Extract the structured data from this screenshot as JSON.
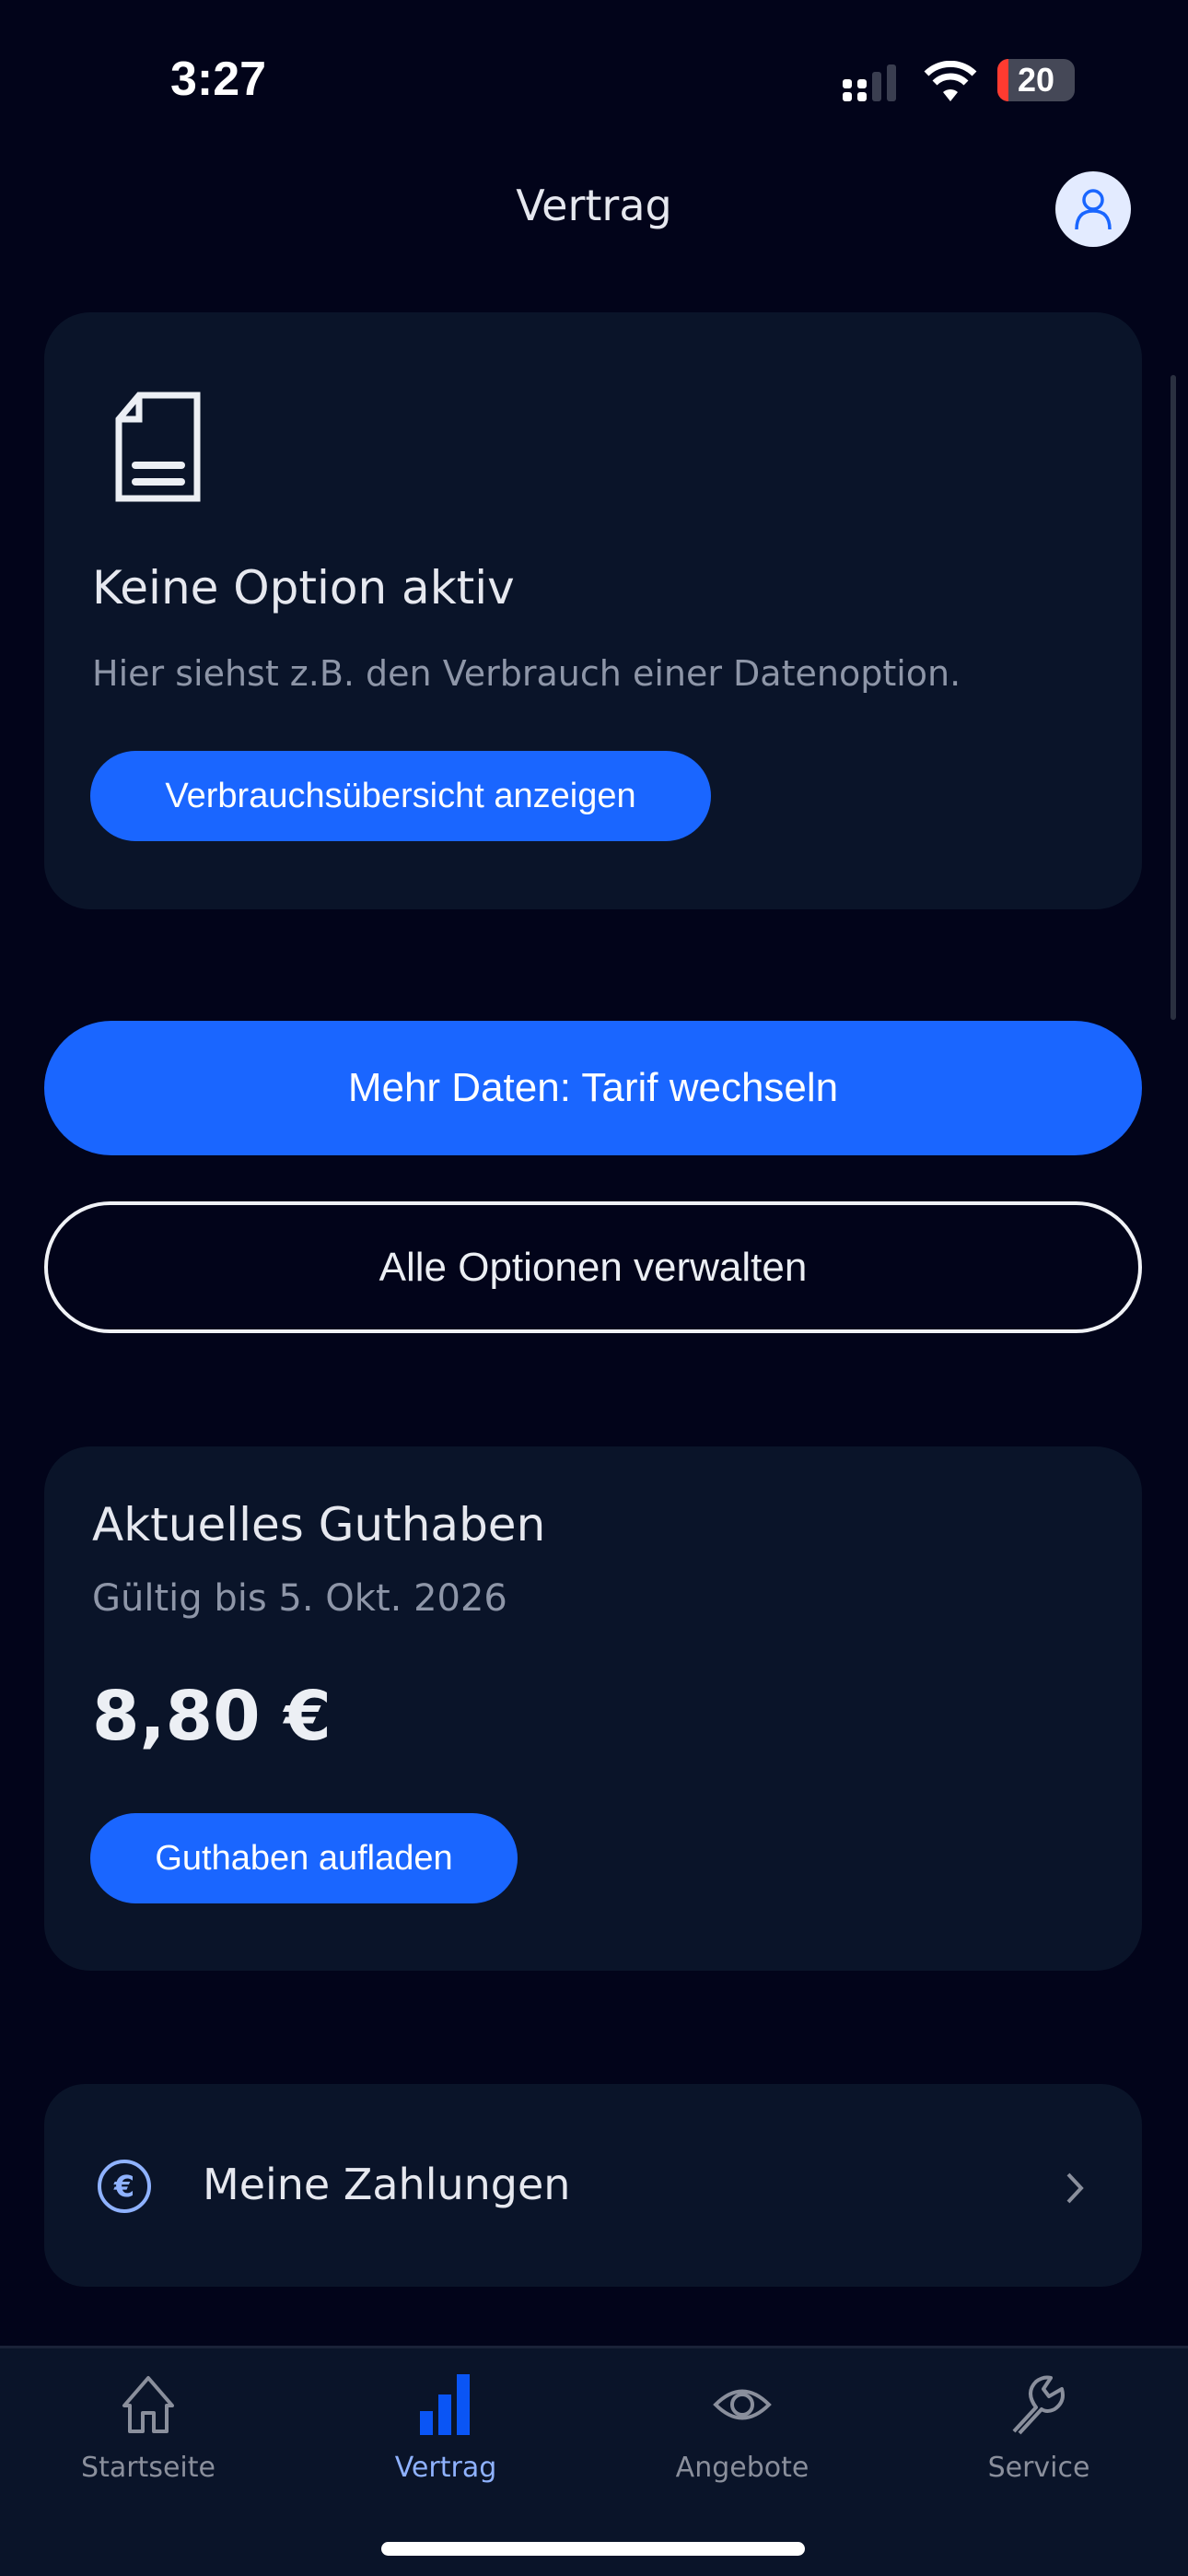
{
  "status_bar": {
    "time": "3:27",
    "battery": "20"
  },
  "header": {
    "title": "Vertrag"
  },
  "option_card": {
    "icon": "document-icon",
    "title": "Keine Option aktiv",
    "description": "Hier siehst z.B. den Verbrauch einer Datenoption.",
    "button": "Verbrauchsübersicht anzeigen"
  },
  "actions": {
    "primary": "Mehr Daten: Tarif wechseln",
    "secondary": "Alle Optionen verwalten"
  },
  "balance_card": {
    "title": "Aktuelles Guthaben",
    "valid": "Gültig bis 5. Okt. 2026",
    "amount": "8,80 €",
    "button": "Guthaben aufladen"
  },
  "payments": {
    "icon": "euro-icon",
    "label": "Meine Zahlungen"
  },
  "nav": {
    "items": [
      {
        "label": "Startseite",
        "icon": "home-icon"
      },
      {
        "label": "Vertrag",
        "icon": "bar-chart-icon",
        "active": true
      },
      {
        "label": "Angebote",
        "icon": "eye-icon"
      },
      {
        "label": "Service",
        "icon": "wrench-icon"
      }
    ]
  },
  "colors": {
    "accent": "#1a66ff",
    "background": "#02041a",
    "card": "#0a1429"
  }
}
